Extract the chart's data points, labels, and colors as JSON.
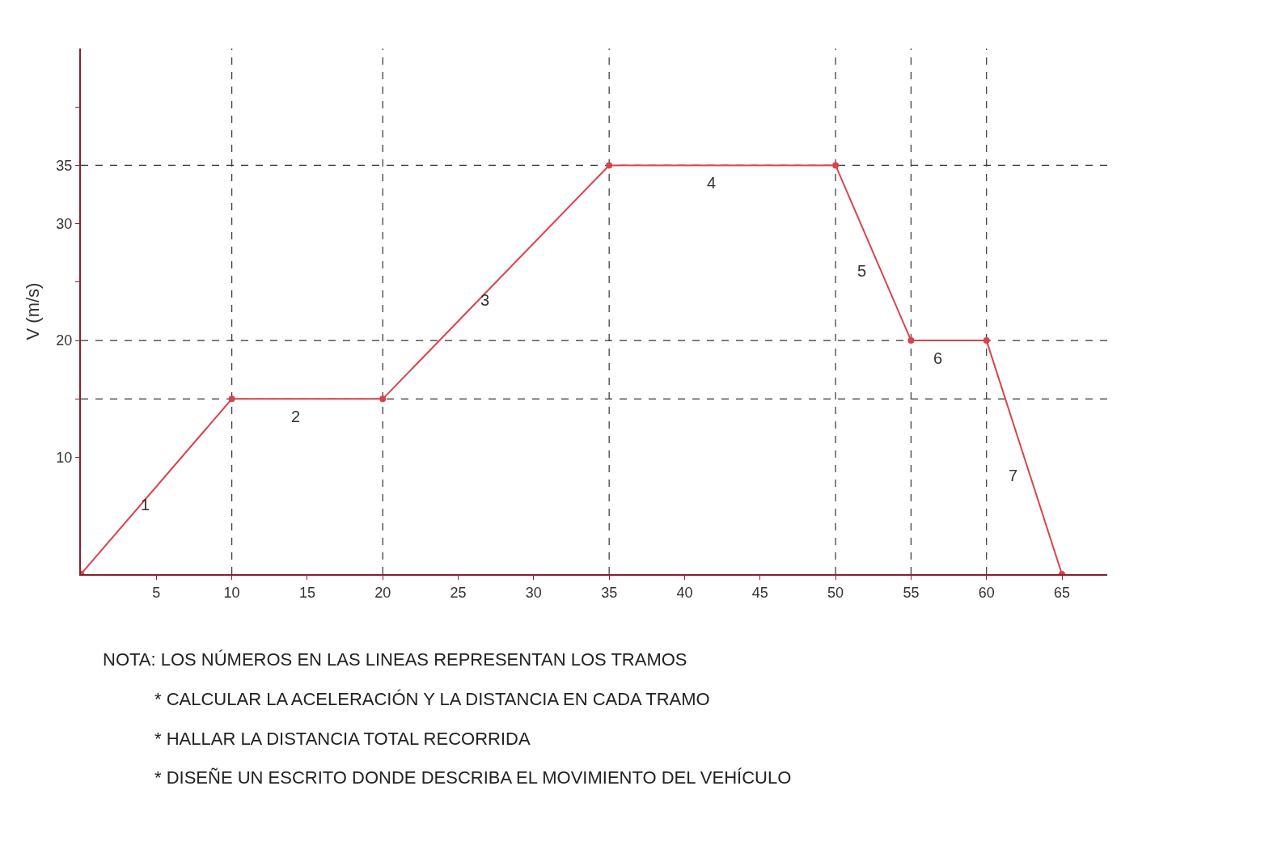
{
  "chart_data": {
    "type": "line",
    "ylabel": "V (m/s)",
    "x": [
      0,
      10,
      20,
      35,
      50,
      55,
      60,
      65
    ],
    "series": [
      {
        "color": "#d9434d",
        "values": [
          0,
          15,
          15,
          35,
          35,
          20,
          20,
          0
        ]
      }
    ],
    "xlim": [
      0,
      68
    ],
    "xticks": [
      5,
      10,
      15,
      20,
      25,
      30,
      35,
      40,
      45,
      50,
      55,
      60,
      65
    ],
    "ylim": [
      0,
      45
    ],
    "yticks": [
      10,
      {
        "value": 15,
        "label": null
      },
      20,
      {
        "value": 25,
        "label": null
      },
      30,
      35,
      {
        "value": 40,
        "label": null
      }
    ],
    "marker": "circle",
    "line_style": "solid",
    "grid": false,
    "legend": false,
    "ref_lines": [
      {
        "axis": "y",
        "value": 35,
        "color": "#333333",
        "line_style": "dashed"
      },
      {
        "axis": "y",
        "value": 20,
        "color": "#333333",
        "line_style": "dashed"
      },
      {
        "axis": "y",
        "value": 15,
        "color": "#333333",
        "line_style": "dashed"
      },
      {
        "axis": "x",
        "value": 10,
        "color": "#333333",
        "line_style": "dashed"
      },
      {
        "axis": "x",
        "value": 20,
        "color": "#333333",
        "line_style": "dashed"
      },
      {
        "axis": "x",
        "value": 35,
        "color": "#333333",
        "line_style": "dashed"
      },
      {
        "axis": "x",
        "value": 50,
        "color": "#333333",
        "line_style": "dashed"
      },
      {
        "axis": "x",
        "value": 55,
        "color": "#333333",
        "line_style": "dashed"
      },
      {
        "axis": "x",
        "value": 60,
        "color": "#333333",
        "line_style": "dashed"
      }
    ],
    "annotations": [
      {
        "text": "1",
        "x": 5,
        "y": 7.5
      },
      {
        "text": "2",
        "x": 15,
        "y": 15
      },
      {
        "text": "3",
        "x": 27.5,
        "y": 25
      },
      {
        "text": "4",
        "x": 42.5,
        "y": 35
      },
      {
        "text": "5",
        "x": 52.5,
        "y": 27.5
      },
      {
        "text": "6",
        "x": 57.5,
        "y": 20
      },
      {
        "text": "7",
        "x": 62.5,
        "y": 10
      },
      "NOTA: LOS NÚMEROS EN LAS LINEAS REPRESENTAN LOS TRAMOS",
      "* CALCULAR LA ACELERACIÓN Y LA DISTANCIA EN CADA TRAMO",
      "* HALLAR LA DISTANCIA TOTAL RECORRIDA",
      "* DISEÑE UN ESCRITO DONDE DESCRIBA EL MOVIMIENTO DEL VEHÍCULO"
    ]
  }
}
